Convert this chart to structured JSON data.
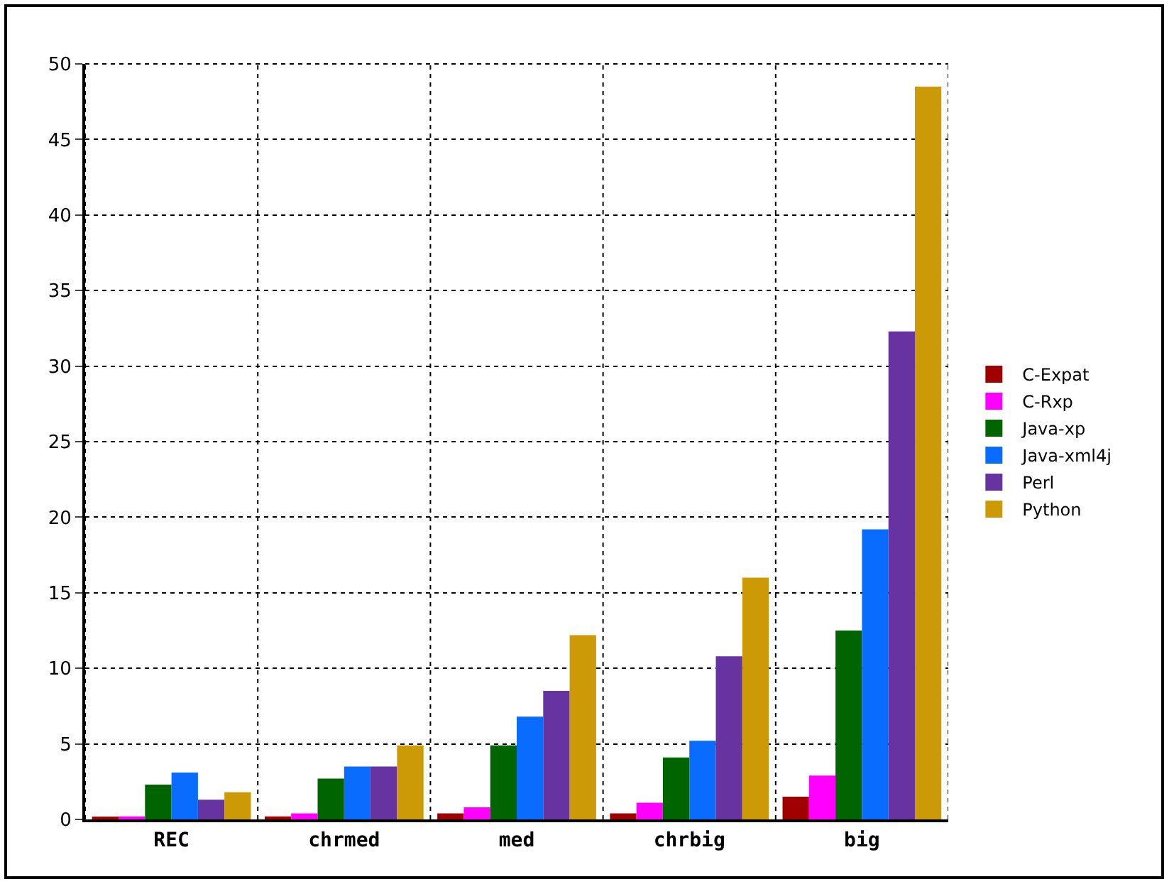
{
  "chart_data": {
    "type": "bar",
    "categories": [
      "REC",
      "chrmed",
      "med",
      "chrbig",
      "big"
    ],
    "series": [
      {
        "name": "C-Expat",
        "color": "#a00000",
        "values": [
          0.1,
          0.2,
          0.4,
          0.4,
          1.5
        ]
      },
      {
        "name": "C-Rxp",
        "color": "#ff00ff",
        "values": [
          0.2,
          0.4,
          0.8,
          1.1,
          2.9
        ]
      },
      {
        "name": "Java-xp",
        "color": "#006400",
        "values": [
          2.3,
          2.7,
          4.9,
          4.1,
          12.5
        ]
      },
      {
        "name": "Java-xml4j",
        "color": "#0a6cff",
        "values": [
          3.1,
          3.5,
          6.8,
          5.2,
          19.2
        ]
      },
      {
        "name": "Perl",
        "color": "#6633a0",
        "values": [
          1.3,
          3.5,
          8.5,
          10.8,
          32.3
        ]
      },
      {
        "name": "Python",
        "color": "#cc9a06",
        "values": [
          1.8,
          4.9,
          12.2,
          16.0,
          48.5
        ]
      }
    ],
    "ylim": [
      0,
      50
    ],
    "yticks": [
      0,
      5,
      10,
      15,
      20,
      25,
      30,
      35,
      40,
      45,
      50
    ],
    "grid": true,
    "legend": "right"
  }
}
